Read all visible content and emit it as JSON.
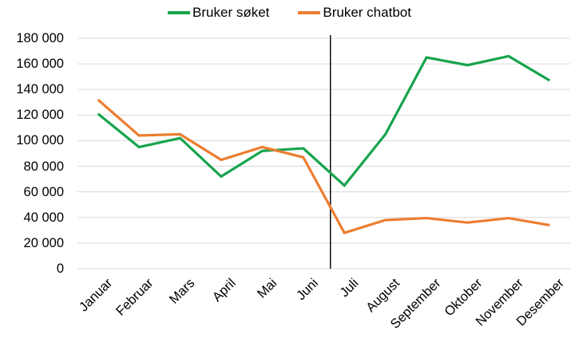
{
  "chart_data": {
    "type": "line",
    "title": "",
    "xlabel": "",
    "ylabel": "",
    "categories": [
      "Januar",
      "Februar",
      "Mars",
      "April",
      "Mai",
      "Juni",
      "Juli",
      "August",
      "September",
      "Oktober",
      "November",
      "Desember"
    ],
    "series": [
      {
        "name": "Bruker søket",
        "color": "#17A44C",
        "values": [
          121000,
          95000,
          102000,
          72000,
          92000,
          94000,
          65000,
          105000,
          165000,
          159000,
          166000,
          147000
        ]
      },
      {
        "name": "Bruker chatbot",
        "color": "#ED7D31",
        "values": [
          132000,
          104000,
          105000,
          85000,
          95000,
          87000,
          28000,
          38000,
          39500,
          36000,
          39500,
          34000
        ]
      }
    ],
    "ylim": [
      0,
      180000
    ],
    "ytick_step": 20000,
    "ytick_labels": [
      "0",
      "20 000",
      "40 000",
      "60 000",
      "80 000",
      "100 000",
      "120 000",
      "140 000",
      "160 000",
      "180 000"
    ],
    "grid": "horizontal",
    "gridline_color": "#D9D9D9",
    "text_color": "#000000",
    "legend_position": "top-center",
    "x_label_rotation_deg": -45,
    "divider": {
      "between": [
        "Juni",
        "Juli"
      ],
      "offset_fraction": 0.66,
      "color": "#000000"
    }
  }
}
